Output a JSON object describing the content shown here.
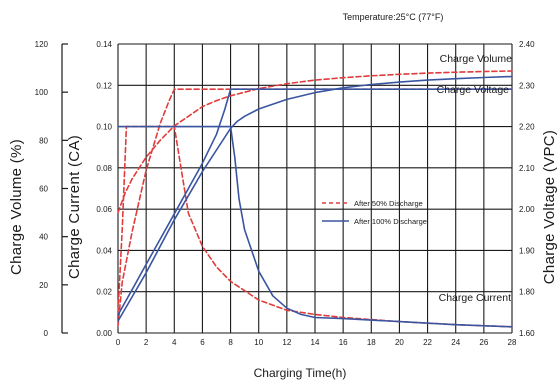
{
  "chart_data": {
    "type": "line",
    "annotation": "Temperature:25°C (77°F)",
    "xlabel": "Charging Time(h)",
    "ylabel_left_outer": "Charge Volume (%)",
    "ylabel_left_inner": "Charge Current (CA)",
    "ylabel_right": "Charge Voltage (VPC)",
    "xlim": [
      0,
      28
    ],
    "x_ticks": [
      "0",
      "2",
      "4",
      "6",
      "8",
      "10",
      "12",
      "14",
      "16",
      "18",
      "20",
      "22",
      "24",
      "26",
      "28"
    ],
    "y_axes": {
      "volume": {
        "unit": "%",
        "lim": [
          0,
          120
        ],
        "ticks": [
          "0",
          "20",
          "40",
          "60",
          "80",
          "100",
          "120"
        ]
      },
      "current": {
        "unit": "CA",
        "lim": [
          0,
          0.14
        ],
        "ticks": [
          "0.00",
          "0.02",
          "0.04",
          "0.06",
          "0.08",
          "0.10",
          "0.12",
          "0.14"
        ]
      },
      "voltage": {
        "unit": "VPC",
        "lim": [
          1.6,
          2.4
        ],
        "ticks": [
          "1.60",
          "1.80",
          "1.90",
          "2.00",
          "2.10",
          "2.20",
          "2.30",
          "2.40"
        ]
      }
    },
    "grid": true,
    "legend": {
      "position": "right-center",
      "entries": [
        {
          "label": "After 50% Discharge",
          "color": "#e03c3c",
          "dash": "dashed"
        },
        {
          "label": "After 100% Discharge",
          "color": "#3a55a0",
          "dash": "solid"
        }
      ]
    },
    "curve_labels": {
      "volume": "Charge Volume",
      "voltage": "Charge Voltage",
      "current": "Charge Current"
    },
    "series": [
      {
        "group": "After 50% Discharge",
        "quantity": "Charge Volume",
        "axis": "volume",
        "color": "#e03c3c",
        "dash": "dashed",
        "x": [
          0,
          0.5,
          1,
          2,
          3,
          4,
          5,
          6,
          7,
          8,
          10,
          12,
          14,
          16,
          18,
          20,
          22,
          24,
          26,
          28
        ],
        "y": [
          50,
          58,
          64,
          73,
          80,
          86,
          90,
          94,
          96.5,
          98.5,
          101.5,
          103.5,
          105,
          106,
          106.8,
          107.4,
          107.9,
          108.3,
          108.6,
          108.8
        ]
      },
      {
        "group": "After 50% Discharge",
        "quantity": "Charge Current",
        "axis": "current",
        "color": "#e03c3c",
        "dash": "dashed",
        "x": [
          0,
          0.3,
          0.6,
          1,
          1.5,
          2,
          3,
          4,
          5,
          6,
          7,
          8,
          10,
          12,
          14,
          16,
          20,
          24,
          28
        ],
        "y": [
          0.01,
          0.05,
          0.1,
          0.1,
          0.1,
          0.1,
          0.1,
          0.1,
          0.058,
          0.042,
          0.032,
          0.025,
          0.016,
          0.011,
          0.009,
          0.0075,
          0.0055,
          0.004,
          0.003
        ]
      },
      {
        "group": "After 50% Discharge",
        "quantity": "Charge Voltage",
        "axis": "voltage",
        "color": "#e03c3c",
        "dash": "dashed",
        "x": [
          0,
          0.3,
          1,
          2,
          3,
          3.6,
          4,
          6,
          8,
          10,
          14,
          18,
          22,
          26,
          28
        ],
        "y": [
          1.62,
          1.74,
          1.88,
          2.05,
          2.18,
          2.24,
          2.275,
          2.275,
          2.275,
          2.275,
          2.275,
          2.275,
          2.275,
          2.275,
          2.275
        ]
      },
      {
        "group": "After 100% Discharge",
        "quantity": "Charge Volume",
        "axis": "volume",
        "color": "#3a55a0",
        "dash": "solid",
        "x": [
          0,
          1,
          2,
          3,
          4,
          5,
          6,
          7,
          8,
          8.5,
          9,
          10,
          12,
          14,
          16,
          18,
          20,
          22,
          24,
          26,
          28
        ],
        "y": [
          5,
          15,
          25,
          36,
          47,
          57,
          67,
          76,
          85,
          88,
          90,
          93,
          97,
          99.8,
          101.8,
          103.2,
          104.2,
          105,
          105.6,
          106.1,
          106.5
        ]
      },
      {
        "group": "After 100% Discharge",
        "quantity": "Charge Current",
        "axis": "current",
        "color": "#3a55a0",
        "dash": "solid",
        "x": [
          0,
          0.1,
          2,
          4,
          6,
          8,
          8.3,
          8.6,
          9,
          10,
          11,
          12,
          13,
          14,
          16,
          20,
          24,
          28
        ],
        "y": [
          0.1,
          0.1,
          0.1,
          0.1,
          0.1,
          0.1,
          0.085,
          0.065,
          0.05,
          0.03,
          0.018,
          0.012,
          0.009,
          0.0075,
          0.007,
          0.0055,
          0.004,
          0.003
        ]
      },
      {
        "group": "After 100% Discharge",
        "quantity": "Charge Voltage",
        "axis": "voltage",
        "color": "#3a55a0",
        "dash": "solid",
        "x": [
          0,
          1,
          2,
          3,
          4,
          5,
          6,
          7,
          7.6,
          8,
          10,
          14,
          18,
          22,
          26,
          28
        ],
        "y": [
          1.65,
          1.72,
          1.79,
          1.86,
          1.93,
          2.0,
          2.07,
          2.15,
          2.22,
          2.275,
          2.275,
          2.275,
          2.275,
          2.275,
          2.275,
          2.275
        ]
      }
    ]
  }
}
